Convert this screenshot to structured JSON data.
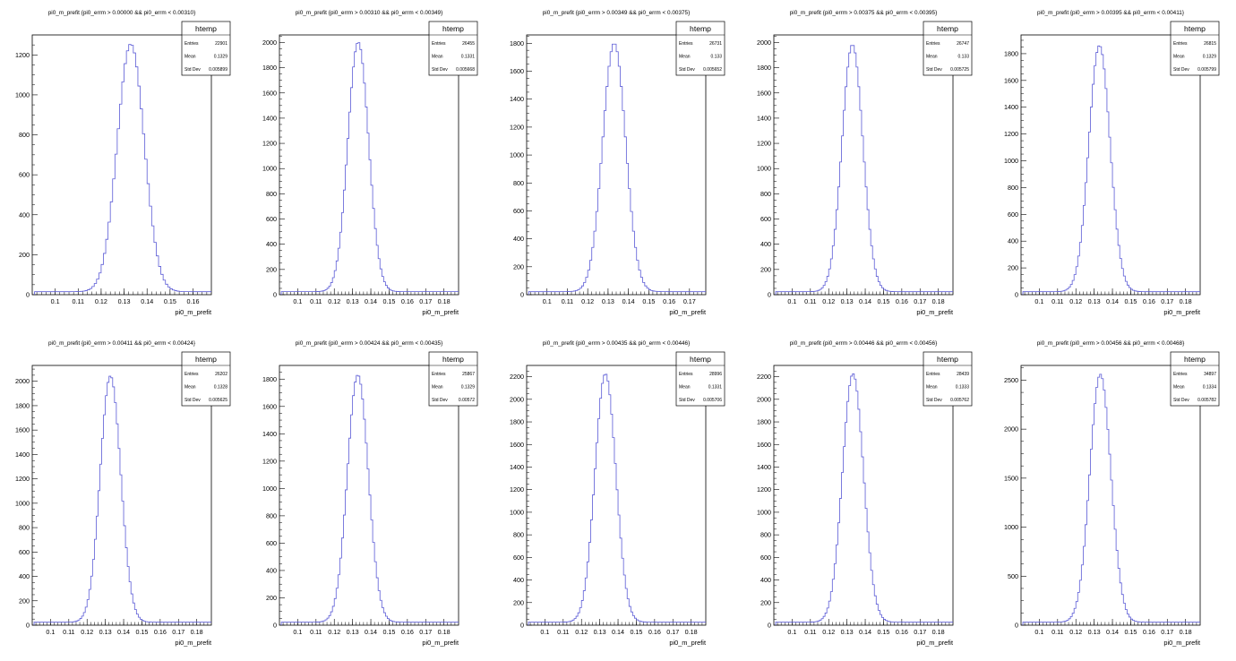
{
  "meta": {
    "hist_color": "#5b5bd6"
  },
  "chart_data": [
    {
      "type": "histogram",
      "title": "pi0_m_prefit {pi0_errm > 0.00000 && pi0_errm < 0.00310}",
      "xlabel": "pi0_m_prefit",
      "xlim": [
        0.09,
        0.168
      ],
      "xticks": [
        0.1,
        0.11,
        0.12,
        0.13,
        0.14,
        0.15,
        0.16
      ],
      "ylim": [
        0,
        1300
      ],
      "yticks": [
        0,
        200,
        400,
        600,
        800,
        1000,
        1200
      ],
      "peak": 1240,
      "mean_value": 0.1329,
      "std_value": 0.005899,
      "stats": {
        "name": "htemp",
        "entries_label": "Entries",
        "entries": "22901",
        "mean_label": "Mean",
        "mean": "0.1329",
        "std_label": "Std Dev",
        "std": "0.005899"
      }
    },
    {
      "type": "histogram",
      "title": "pi0_m_prefit {pi0_errm > 0.00310 && pi0_errm < 0.00349}",
      "xlabel": "pi0_m_prefit",
      "xlim": [
        0.09,
        0.188
      ],
      "xticks": [
        0.1,
        0.11,
        0.12,
        0.13,
        0.14,
        0.15,
        0.16,
        0.17,
        0.18
      ],
      "ylim": [
        0,
        2060
      ],
      "yticks": [
        0,
        200,
        400,
        600,
        800,
        1000,
        1200,
        1400,
        1600,
        1800,
        2000
      ],
      "peak": 1980,
      "mean_value": 0.1331,
      "std_value": 0.005668,
      "stats": {
        "name": "htemp",
        "entries_label": "Entries",
        "entries": "26455",
        "mean_label": "Mean",
        "mean": "0.1331",
        "std_label": "Std Dev",
        "std": "0.005668"
      }
    },
    {
      "type": "histogram",
      "title": "pi0_m_prefit {pi0_errm > 0.00349 && pi0_errm < 0.00375}",
      "xlabel": "pi0_m_prefit",
      "xlim": [
        0.09,
        0.178
      ],
      "xticks": [
        0.1,
        0.11,
        0.12,
        0.13,
        0.14,
        0.15,
        0.16,
        0.17
      ],
      "ylim": [
        0,
        1860
      ],
      "yticks": [
        0,
        200,
        400,
        600,
        800,
        1000,
        1200,
        1400,
        1600,
        1800
      ],
      "peak": 1780,
      "mean_value": 0.133,
      "std_value": 0.005652,
      "stats": {
        "name": "htemp",
        "entries_label": "Entries",
        "entries": "26731",
        "mean_label": "Mean",
        "mean": "0.133",
        "std_label": "Std Dev",
        "std": "0.005652"
      }
    },
    {
      "type": "histogram",
      "title": "pi0_m_prefit {pi0_errm > 0.00375 && pi0_errm < 0.00395}",
      "xlabel": "pi0_m_prefit",
      "xlim": [
        0.09,
        0.188
      ],
      "xticks": [
        0.1,
        0.11,
        0.12,
        0.13,
        0.14,
        0.15,
        0.16,
        0.17,
        0.18
      ],
      "ylim": [
        0,
        2060
      ],
      "yticks": [
        0,
        200,
        400,
        600,
        800,
        1000,
        1200,
        1400,
        1600,
        1800,
        2000
      ],
      "peak": 1960,
      "mean_value": 0.133,
      "std_value": 0.005725,
      "stats": {
        "name": "htemp",
        "entries_label": "Entries",
        "entries": "26747",
        "mean_label": "Mean",
        "mean": "0.133",
        "std_label": "Std Dev",
        "std": "0.005725"
      }
    },
    {
      "type": "histogram",
      "title": "pi0_m_prefit {pi0_errm > 0.00395 && pi0_errm < 0.00411}",
      "xlabel": "pi0_m_prefit",
      "xlim": [
        0.09,
        0.188
      ],
      "xticks": [
        0.1,
        0.11,
        0.12,
        0.13,
        0.14,
        0.15,
        0.16,
        0.17,
        0.18
      ],
      "ylim": [
        0,
        1940
      ],
      "yticks": [
        0,
        200,
        400,
        600,
        800,
        1000,
        1200,
        1400,
        1600,
        1800
      ],
      "peak": 1840,
      "mean_value": 0.1329,
      "std_value": 0.005799,
      "stats": {
        "name": "htemp",
        "entries_label": "Entries",
        "entries": "26815",
        "mean_label": "Mean",
        "mean": "0.1329",
        "std_label": "Std Dev",
        "std": "0.005799"
      }
    },
    {
      "type": "histogram",
      "title": "pi0_m_prefit {pi0_errm > 0.00411 && pi0_errm < 0.00424}",
      "xlabel": "pi0_m_prefit",
      "xlim": [
        0.09,
        0.188
      ],
      "xticks": [
        0.1,
        0.11,
        0.12,
        0.13,
        0.14,
        0.15,
        0.16,
        0.17,
        0.18
      ],
      "ylim": [
        0,
        2130
      ],
      "yticks": [
        0,
        200,
        400,
        600,
        800,
        1000,
        1200,
        1400,
        1600,
        1800,
        2000
      ],
      "peak": 2020,
      "mean_value": 0.1328,
      "std_value": 0.005625,
      "stats": {
        "name": "htemp",
        "entries_label": "Entries",
        "entries": "26202",
        "mean_label": "Mean",
        "mean": "0.1328",
        "std_label": "Std Dev",
        "std": "0.005625"
      }
    },
    {
      "type": "histogram",
      "title": "pi0_m_prefit {pi0_errm > 0.00424 && pi0_errm < 0.00435}",
      "xlabel": "pi0_m_prefit",
      "xlim": [
        0.09,
        0.188
      ],
      "xticks": [
        0.1,
        0.11,
        0.12,
        0.13,
        0.14,
        0.15,
        0.16,
        0.17,
        0.18
      ],
      "ylim": [
        0,
        1900
      ],
      "yticks": [
        0,
        200,
        400,
        600,
        800,
        1000,
        1200,
        1400,
        1600,
        1800
      ],
      "peak": 1810,
      "mean_value": 0.1329,
      "std_value": 0.00572,
      "stats": {
        "name": "htemp",
        "entries_label": "Entries",
        "entries": "25867",
        "mean_label": "Mean",
        "mean": "0.1329",
        "std_label": "Std Dev",
        "std": "0.00572"
      }
    },
    {
      "type": "histogram",
      "title": "pi0_m_prefit {pi0_errm > 0.00435 && pi0_errm < 0.00446}",
      "xlabel": "pi0_m_prefit",
      "xlim": [
        0.09,
        0.188
      ],
      "xticks": [
        0.1,
        0.11,
        0.12,
        0.13,
        0.14,
        0.15,
        0.16,
        0.17,
        0.18
      ],
      "ylim": [
        0,
        2300
      ],
      "yticks": [
        0,
        200,
        400,
        600,
        800,
        1000,
        1200,
        1400,
        1600,
        1800,
        2000,
        2200
      ],
      "peak": 2200,
      "mean_value": 0.1331,
      "std_value": 0.005706,
      "stats": {
        "name": "htemp",
        "entries_label": "Entries",
        "entries": "28996",
        "mean_label": "Mean",
        "mean": "0.1331",
        "std_label": "Std Dev",
        "std": "0.005706"
      }
    },
    {
      "type": "histogram",
      "title": "pi0_m_prefit {pi0_errm > 0.00446 && pi0_errm < 0.00456}",
      "xlabel": "pi0_m_prefit",
      "xlim": [
        0.09,
        0.188
      ],
      "xticks": [
        0.1,
        0.11,
        0.12,
        0.13,
        0.14,
        0.15,
        0.16,
        0.17,
        0.18
      ],
      "ylim": [
        0,
        2300
      ],
      "yticks": [
        0,
        200,
        400,
        600,
        800,
        1000,
        1200,
        1400,
        1600,
        1800,
        2000,
        2200
      ],
      "peak": 2200,
      "mean_value": 0.1333,
      "std_value": 0.005762,
      "stats": {
        "name": "htemp",
        "entries_label": "Entries",
        "entries": "28439",
        "mean_label": "Mean",
        "mean": "0.1333",
        "std_label": "Std Dev",
        "std": "0.005762"
      }
    },
    {
      "type": "histogram",
      "title": "pi0_m_prefit {pi0_errm > 0.00456 && pi0_errm < 0.00468}",
      "xlabel": "pi0_m_prefit",
      "xlim": [
        0.09,
        0.188
      ],
      "xticks": [
        0.1,
        0.11,
        0.12,
        0.13,
        0.14,
        0.15,
        0.16,
        0.17,
        0.18
      ],
      "ylim": [
        0,
        2650
      ],
      "yticks": [
        0,
        500,
        1000,
        1500,
        2000,
        2500
      ],
      "peak": 2530,
      "mean_value": 0.1334,
      "std_value": 0.005782,
      "stats": {
        "name": "htemp",
        "entries_label": "Entries",
        "entries": "34897",
        "mean_label": "Mean",
        "mean": "0.1334",
        "std_label": "Std Dev",
        "std": "0.005782"
      }
    }
  ]
}
